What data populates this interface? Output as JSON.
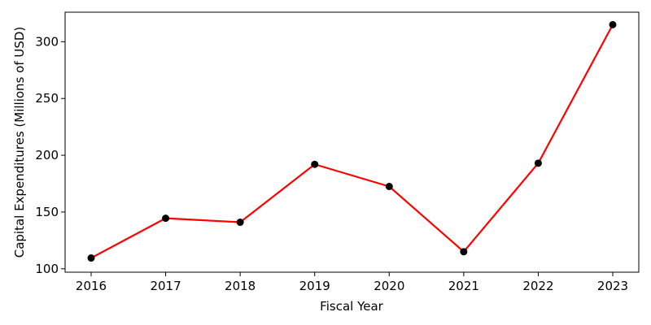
{
  "chart_data": {
    "type": "line",
    "title": "",
    "xlabel": "Fiscal Year",
    "ylabel": "Capital Expenditures (Millions of USD)",
    "x": [
      "2016",
      "2017",
      "2018",
      "2019",
      "2020",
      "2021",
      "2022",
      "2023"
    ],
    "series": [
      {
        "values": [
          109.5,
          144.5,
          141.0,
          192.0,
          172.5,
          115.0,
          193.0,
          315.0
        ],
        "line_color": "#ff0000",
        "marker_color": "#000000",
        "marker": "circle"
      }
    ],
    "yticks": [
      100,
      150,
      200,
      250,
      300
    ],
    "ylim": [
      97,
      326
    ],
    "grid": false,
    "legend": "none"
  }
}
